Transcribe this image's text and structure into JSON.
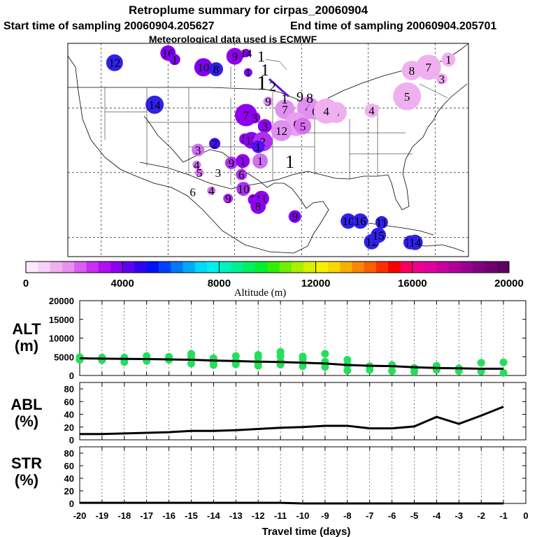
{
  "header": {
    "title": "Retroplume summary for cirpas_20060904",
    "start": "Start time of sampling 20060904.205627",
    "end": "End time of sampling 20060904.205701",
    "met": "Meteorological data used is ECMWF"
  },
  "colorbar": {
    "label": "Altitude (m)",
    "ticks": [
      "0",
      "4000",
      "8000",
      "12000",
      "16000",
      "20000"
    ],
    "range": [
      0,
      20000
    ],
    "colors": [
      "#fce8fc",
      "#f8d0f8",
      "#f0b0f0",
      "#e890f0",
      "#d860f0",
      "#c830f0",
      "#b010f0",
      "#9000f0",
      "#6000f0",
      "#3000f0",
      "#0010f8",
      "#0040f8",
      "#0078f8",
      "#00a8f8",
      "#00d8f8",
      "#00f0f0",
      "#00f0c0",
      "#00f090",
      "#00f060",
      "#00f030",
      "#30f000",
      "#70f000",
      "#a8f000",
      "#d8f000",
      "#f8f000",
      "#f8d800",
      "#f8b000",
      "#f88800",
      "#f86000",
      "#f83000",
      "#f80000",
      "#f80060",
      "#f00090",
      "#e000a0",
      "#c800a0",
      "#b00098",
      "#980090",
      "#800080",
      "#700070",
      "#600060"
    ]
  },
  "map_points": [
    {
      "n": "12",
      "lon": -118,
      "lat": 47,
      "c": "#3020e8",
      "r": 12
    },
    {
      "n": "16",
      "lon": -110,
      "lat": 48.5,
      "c": "#8000f0",
      "r": 11
    },
    {
      "n": "1",
      "lon": -109,
      "lat": 47.5,
      "c": "#8000f0",
      "r": 8
    },
    {
      "n": "10",
      "lon": -104.7,
      "lat": 46.3,
      "c": "#8000f0",
      "r": 13
    },
    {
      "n": "8",
      "lon": -102.8,
      "lat": 46.0,
      "c": "#3020e8",
      "r": 10
    },
    {
      "n": "9",
      "lon": -100,
      "lat": 48,
      "c": "#9000f0",
      "r": 12
    },
    {
      "n": "14",
      "lon": -98.3,
      "lat": 48.5,
      "c": "#8000f0",
      "r": 6
    },
    {
      "n": "1",
      "lon": -98,
      "lat": 45.5,
      "c": "#8000f0",
      "r": 6
    },
    {
      "n": "14",
      "lon": -112,
      "lat": 40.5,
      "c": "#3020e8",
      "r": 13
    },
    {
      "n": "7",
      "lon": -98.3,
      "lat": 38.9,
      "c": "#9000f0",
      "r": 16
    },
    {
      "n": "3",
      "lon": -97,
      "lat": 38.5,
      "c": "#9000f0",
      "r": 8
    },
    {
      "n": "9",
      "lon": -95,
      "lat": 41,
      "c": "#e090f0",
      "r": 7
    },
    {
      "n": "7",
      "lon": -92.5,
      "lat": 39.8,
      "c": "#e090f0",
      "r": 14
    },
    {
      "n": "4",
      "lon": -89,
      "lat": 40,
      "c": "#e090f0",
      "r": 16
    },
    {
      "n": "6",
      "lon": -88,
      "lat": 39.5,
      "c": "#e090f0",
      "r": 12
    },
    {
      "n": "6",
      "lon": -90.8,
      "lat": 37.5,
      "c": "#e8a0f0",
      "r": 17
    },
    {
      "n": "5",
      "lon": -89.8,
      "lat": 37.2,
      "c": "#d870f0",
      "r": 12
    },
    {
      "n": "12",
      "lon": -93,
      "lat": 36.5,
      "c": "#e090f0",
      "r": 15
    },
    {
      "n": "3",
      "lon": -95.5,
      "lat": 37.2,
      "c": "#9000f0",
      "r": 10
    },
    {
      "n": "8",
      "lon": -98.5,
      "lat": 35.2,
      "c": "#9000f0",
      "r": 8
    },
    {
      "n": "13",
      "lon": -97.5,
      "lat": 35,
      "c": "#9000f0",
      "r": 12
    },
    {
      "n": "2",
      "lon": -95.8,
      "lat": 34.8,
      "c": "#b030f0",
      "r": 14
    },
    {
      "n": "2",
      "lon": -103,
      "lat": 34.5,
      "c": "#4010e8",
      "r": 8
    },
    {
      "n": "3",
      "lon": -105.5,
      "lat": 33.5,
      "c": "#d070f0",
      "r": 9
    },
    {
      "n": "9",
      "lon": -100.5,
      "lat": 31.5,
      "c": "#b030f0",
      "r": 9
    },
    {
      "n": "1",
      "lon": -98.8,
      "lat": 31.8,
      "c": "#9000f0",
      "r": 10
    },
    {
      "n": "1",
      "lon": -96.2,
      "lat": 31.8,
      "c": "#d070f0",
      "r": 11
    },
    {
      "n": "1",
      "lon": -96.5,
      "lat": 34,
      "c": "#5010f0",
      "r": 9
    },
    {
      "n": "4",
      "lon": -105.7,
      "lat": 31.2,
      "c": "#d070f0",
      "r": 6
    },
    {
      "n": "5",
      "lon": -105.3,
      "lat": 30,
      "c": "#d070f0",
      "r": 6
    },
    {
      "n": "3",
      "lon": -102.5,
      "lat": 30,
      "c": "#ffffff",
      "r": 0
    },
    {
      "n": "6",
      "lon": -99,
      "lat": 29.7,
      "c": "#b030f0",
      "r": 8
    },
    {
      "n": "6",
      "lon": -106.3,
      "lat": 27,
      "c": "#ffffff",
      "r": 0
    },
    {
      "n": "4",
      "lon": -103.5,
      "lat": 27.2,
      "c": "#d070f0",
      "r": 6
    },
    {
      "n": "10",
      "lon": -98.7,
      "lat": 27.5,
      "c": "#b030f0",
      "r": 10
    },
    {
      "n": "9",
      "lon": -101,
      "lat": 26,
      "c": "#b030f0",
      "r": 7
    },
    {
      "n": "7",
      "lon": -97.2,
      "lat": 25.8,
      "c": "#9000f0",
      "r": 8
    },
    {
      "n": "11",
      "lon": -96,
      "lat": 26,
      "c": "#9000f0",
      "r": 11
    },
    {
      "n": "8",
      "lon": -96.5,
      "lat": 24.8,
      "c": "#9000f0",
      "r": 11
    },
    {
      "n": "9",
      "lon": -91,
      "lat": 23.2,
      "c": "#8000f0",
      "r": 9
    },
    {
      "n": "10",
      "lon": -83,
      "lat": 22.5,
      "c": "#3020e8",
      "r": 11
    },
    {
      "n": "16",
      "lon": -81.2,
      "lat": 22.5,
      "c": "#3020e8",
      "r": 11
    },
    {
      "n": "11",
      "lon": -78,
      "lat": 22.3,
      "c": "#3020e8",
      "r": 9
    },
    {
      "n": "12",
      "lon": -79.5,
      "lat": 19.3,
      "c": "#3020e8",
      "r": 11
    },
    {
      "n": "15",
      "lon": -78.5,
      "lat": 20.3,
      "c": "#3020e8",
      "r": 11
    },
    {
      "n": "18",
      "lon": -73.7,
      "lat": 19.2,
      "c": "#3020e8",
      "r": 10
    },
    {
      "n": "14",
      "lon": -73,
      "lat": 19.2,
      "c": "#3020e8",
      "r": 11
    },
    {
      "n": "8",
      "lon": -73.5,
      "lat": 45.8,
      "c": "#f0b0f0",
      "r": 14
    },
    {
      "n": "7",
      "lon": -71,
      "lat": 46.3,
      "c": "#f0b0f0",
      "r": 18
    },
    {
      "n": "1",
      "lon": -68,
      "lat": 47.5,
      "c": "#f0b0f0",
      "r": 10
    },
    {
      "n": "3",
      "lon": -69,
      "lat": 44.5,
      "c": "#f0b0f0",
      "r": 8
    },
    {
      "n": "5",
      "lon": -74.2,
      "lat": 41.8,
      "c": "#f0b0f0",
      "r": 20
    },
    {
      "n": "4",
      "lon": -79.5,
      "lat": 39.6,
      "c": "#f0b0f0",
      "r": 10
    },
    {
      "n": "6",
      "lon": -84.8,
      "lat": 39.3,
      "c": "#f0b0f0",
      "r": 15
    },
    {
      "n": "4",
      "lon": -86.3,
      "lat": 39.5,
      "c": "#f0b0f0",
      "r": 18
    }
  ],
  "release_labels": [
    "1",
    "1",
    "1",
    "2",
    "9",
    "8",
    "1",
    "1"
  ],
  "chart_data": [
    {
      "type": "scatter",
      "title": "ALT (m)",
      "ylabel": "ALT (m)",
      "xlabel": "Travel time (days)",
      "xlim": [
        -20,
        0
      ],
      "ylim": [
        0,
        20000
      ],
      "yticks": [
        0,
        5000,
        10000,
        15000,
        20000
      ],
      "series": [
        {
          "name": "mean altitude",
          "x": [
            -20,
            -19,
            -18,
            -17,
            -16,
            -15,
            -14,
            -13,
            -12,
            -11,
            -10,
            -9,
            -8,
            -7,
            -6,
            -5,
            -4,
            -3,
            -2,
            -1
          ],
          "y": [
            4600,
            4500,
            4450,
            4400,
            4300,
            4200,
            4000,
            3850,
            3700,
            3600,
            3400,
            3200,
            2800,
            2600,
            2500,
            2200,
            2000,
            1900,
            1800,
            1800
          ]
        },
        {
          "name": "cluster altitudes",
          "points": [
            [
              -20,
              4200
            ],
            [
              -20,
              4900
            ],
            [
              -19,
              4100
            ],
            [
              -19,
              4800
            ],
            [
              -18,
              3600
            ],
            [
              -18,
              4800
            ],
            [
              -17,
              3900
            ],
            [
              -17,
              5200
            ],
            [
              -16,
              4200
            ],
            [
              -16,
              5000
            ],
            [
              -15,
              3200
            ],
            [
              -15,
              4900
            ],
            [
              -15,
              5800
            ],
            [
              -14,
              2800
            ],
            [
              -14,
              4600
            ],
            [
              -14,
              3700
            ],
            [
              -13,
              3000
            ],
            [
              -13,
              5200
            ],
            [
              -13,
              3900
            ],
            [
              -12,
              2600
            ],
            [
              -12,
              4800
            ],
            [
              -12,
              3400
            ],
            [
              -12,
              5500
            ],
            [
              -11,
              2900
            ],
            [
              -11,
              5200
            ],
            [
              -11,
              6300
            ],
            [
              -11,
              3700
            ],
            [
              -10,
              2500
            ],
            [
              -10,
              4300
            ],
            [
              -10,
              5100
            ],
            [
              -9,
              2300
            ],
            [
              -9,
              3700
            ],
            [
              -9,
              5800
            ],
            [
              -8,
              1300
            ],
            [
              -8,
              2800
            ],
            [
              -8,
              4200
            ],
            [
              -7,
              1500
            ],
            [
              -7,
              2500
            ],
            [
              -6,
              1200
            ],
            [
              -6,
              2800
            ],
            [
              -5,
              1000
            ],
            [
              -5,
              2000
            ],
            [
              -4,
              1500
            ],
            [
              -4,
              2600
            ],
            [
              -3,
              1200
            ],
            [
              -3,
              1900
            ],
            [
              -2,
              1100
            ],
            [
              -2,
              3400
            ],
            [
              -1,
              700
            ],
            [
              -1,
              3500
            ]
          ]
        }
      ]
    },
    {
      "type": "line",
      "ylabel": "ABL (%)",
      "xlim": [
        -20,
        0
      ],
      "ylim": [
        0,
        90
      ],
      "yticks": [
        0,
        20,
        40,
        60,
        80
      ],
      "series": [
        {
          "name": "ABL",
          "x": [
            -20,
            -19,
            -18,
            -17,
            -16,
            -15,
            -14,
            -13,
            -12,
            -11,
            -10,
            -9,
            -8,
            -7,
            -6,
            -5,
            -4,
            -3,
            -2,
            -1
          ],
          "y": [
            9,
            9,
            10,
            11,
            12,
            14,
            14,
            15,
            17,
            19,
            20,
            22,
            22,
            18,
            18,
            21,
            36,
            25,
            38,
            52
          ]
        }
      ]
    },
    {
      "type": "line",
      "ylabel": "STR (%)",
      "xlabel": "Travel time (days)",
      "xlim": [
        -20,
        0
      ],
      "ylim": [
        0,
        90
      ],
      "yticks": [
        0,
        20,
        40,
        60,
        80
      ],
      "xticks": [
        -20,
        -19,
        -18,
        -17,
        -16,
        -15,
        -14,
        -13,
        -12,
        -11,
        -10,
        -9,
        -8,
        -7,
        -6,
        -5,
        -4,
        -3,
        -2,
        -1,
        0
      ],
      "series": [
        {
          "name": "STR",
          "x": [
            -20,
            -19,
            -18,
            -17,
            -16,
            -15,
            -14,
            -13,
            -12,
            -11,
            -10,
            -9,
            -8,
            -7,
            -6,
            -5,
            -4,
            -3,
            -2,
            -1
          ],
          "y": [
            1,
            1,
            1,
            1,
            1,
            1,
            1,
            1,
            1,
            1,
            0,
            0,
            0,
            0,
            0,
            0,
            0,
            0,
            0,
            0
          ]
        }
      ]
    }
  ],
  "panels": {
    "alt_label_1": "ALT",
    "alt_label_2": "(m)",
    "abl_label_1": "ABL",
    "abl_label_2": "(%)",
    "str_label_1": "STR",
    "str_label_2": "(%)",
    "xlabel": "Travel time (days)"
  }
}
